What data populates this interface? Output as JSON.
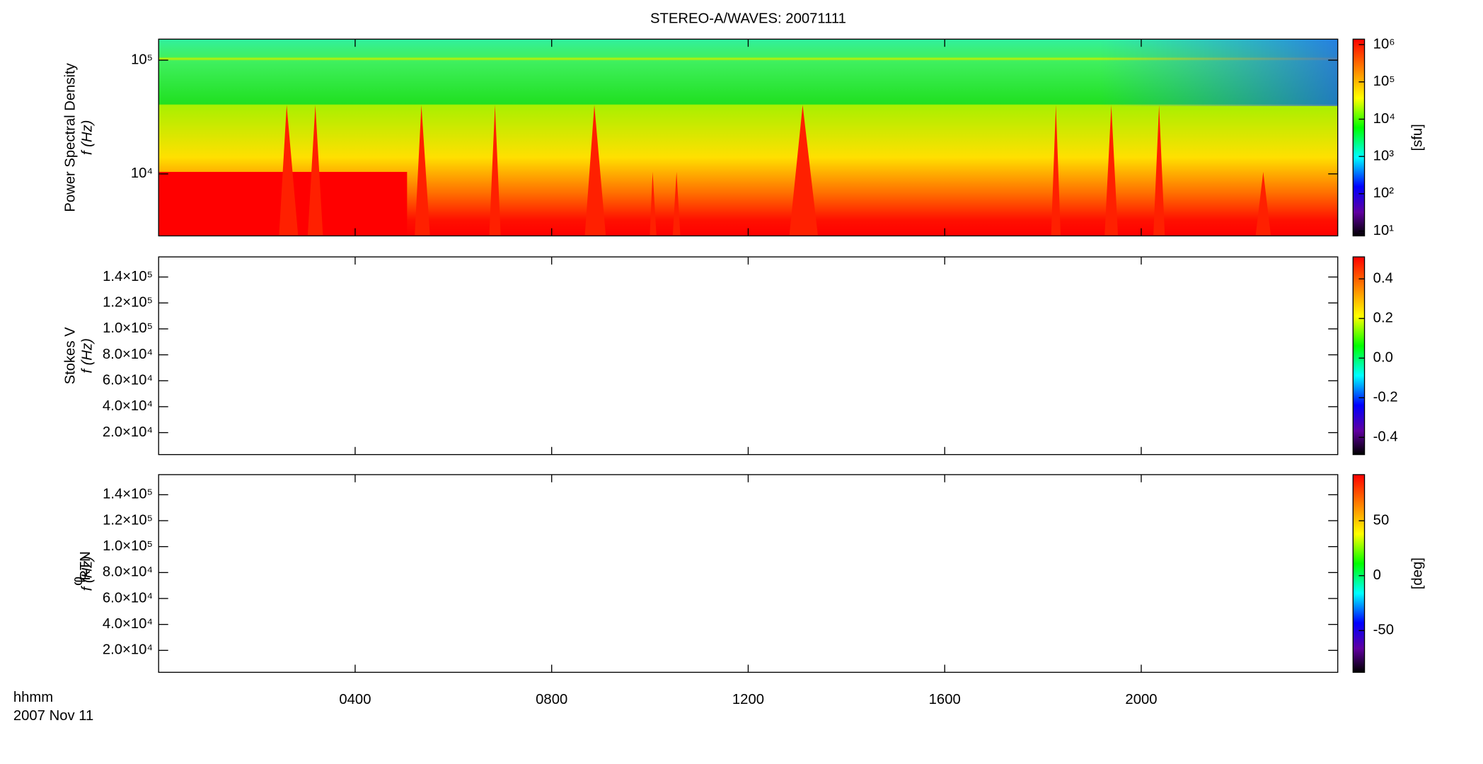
{
  "chart_data": [
    {
      "type": "spectrogram",
      "title": "STEREO-A/WAVES: 20071111",
      "quantity": "Power Spectral Density",
      "ylabel": "f (Hz)",
      "xlim": [
        0,
        24
      ],
      "xticks": [
        {
          "value": 4,
          "label": "0400"
        },
        {
          "value": 8,
          "label": "0800"
        },
        {
          "value": 12,
          "label": "1200"
        },
        {
          "value": 16,
          "label": "1600"
        },
        {
          "value": 20,
          "label": "2000"
        }
      ],
      "ylog": true,
      "ylim": [
        2850,
        153000
      ],
      "yticks": [
        {
          "value": 10000,
          "label": "10⁴"
        },
        {
          "value": 100000,
          "label": "10⁵"
        }
      ],
      "colormap": "rainbow",
      "colorbar": {
        "label": "[sfu]",
        "log": true,
        "lim": [
          7.4,
          1400000
        ],
        "ticks": [
          {
            "value": 10,
            "label": "10¹"
          },
          {
            "value": 100,
            "label": "10²"
          },
          {
            "value": 1000,
            "label": "10³"
          },
          {
            "value": 10000,
            "label": "10⁴"
          },
          {
            "value": 100000,
            "label": "10⁵"
          },
          {
            "value": 1000000,
            "label": "10⁶"
          }
        ]
      }
    },
    {
      "type": "spectrogram",
      "quantity": "Stokes V",
      "ylabel": "f (Hz)",
      "xlim": [
        0,
        24
      ],
      "xticks": [
        {
          "value": 4,
          "label": "0400"
        },
        {
          "value": 8,
          "label": "0800"
        },
        {
          "value": 12,
          "label": "1200"
        },
        {
          "value": 16,
          "label": "1600"
        },
        {
          "value": 20,
          "label": "2000"
        }
      ],
      "ylog": false,
      "ylim": [
        3070,
        155500
      ],
      "yticks": [
        {
          "value": 20000,
          "label": "2.0×10⁴"
        },
        {
          "value": 40000,
          "label": "4.0×10⁴"
        },
        {
          "value": 60000,
          "label": "6.0×10⁴"
        },
        {
          "value": 80000,
          "label": "8.0×10⁴"
        },
        {
          "value": 100000,
          "label": "1.0×10⁵"
        },
        {
          "value": 120000,
          "label": "1.2×10⁵"
        },
        {
          "value": 140000,
          "label": "1.4×10⁵"
        }
      ],
      "colormap": "rainbow",
      "colorbar": {
        "log": false,
        "lim": [
          -0.487,
          0.511
        ],
        "ticks": [
          0.4,
          0.2,
          {
            "value": 0,
            "label": "0.0"
          },
          -0.2,
          -0.4
        ]
      }
    },
    {
      "type": "spectrogram",
      "quantity": {
        "symbol": "φ",
        "subscript": "RTN"
      },
      "ylabel": "f (Hz)",
      "xlim": [
        0,
        24
      ],
      "xticks": [
        {
          "value": 4,
          "label": "0400"
        },
        {
          "value": 8,
          "label": "0800"
        },
        {
          "value": 12,
          "label": "1200"
        },
        {
          "value": 16,
          "label": "1600"
        },
        {
          "value": 20,
          "label": "2000"
        }
      ],
      "xlabel": [
        "hhmm",
        "2007 Nov 11"
      ],
      "ylog": false,
      "ylim": [
        3070,
        155500
      ],
      "yticks": [
        {
          "value": 20000,
          "label": "2.0×10⁴"
        },
        {
          "value": 40000,
          "label": "4.0×10⁴"
        },
        {
          "value": 60000,
          "label": "6.0×10⁴"
        },
        {
          "value": 80000,
          "label": "8.0×10⁴"
        },
        {
          "value": 100000,
          "label": "1.0×10⁵"
        },
        {
          "value": 120000,
          "label": "1.2×10⁵"
        },
        {
          "value": 140000,
          "label": "1.4×10⁵"
        }
      ],
      "colormap": "rainbow",
      "colorbar": {
        "label": "[deg]",
        "log": false,
        "lim": [
          -88,
          92
        ],
        "ticks": [
          50,
          0,
          -50
        ]
      }
    }
  ]
}
